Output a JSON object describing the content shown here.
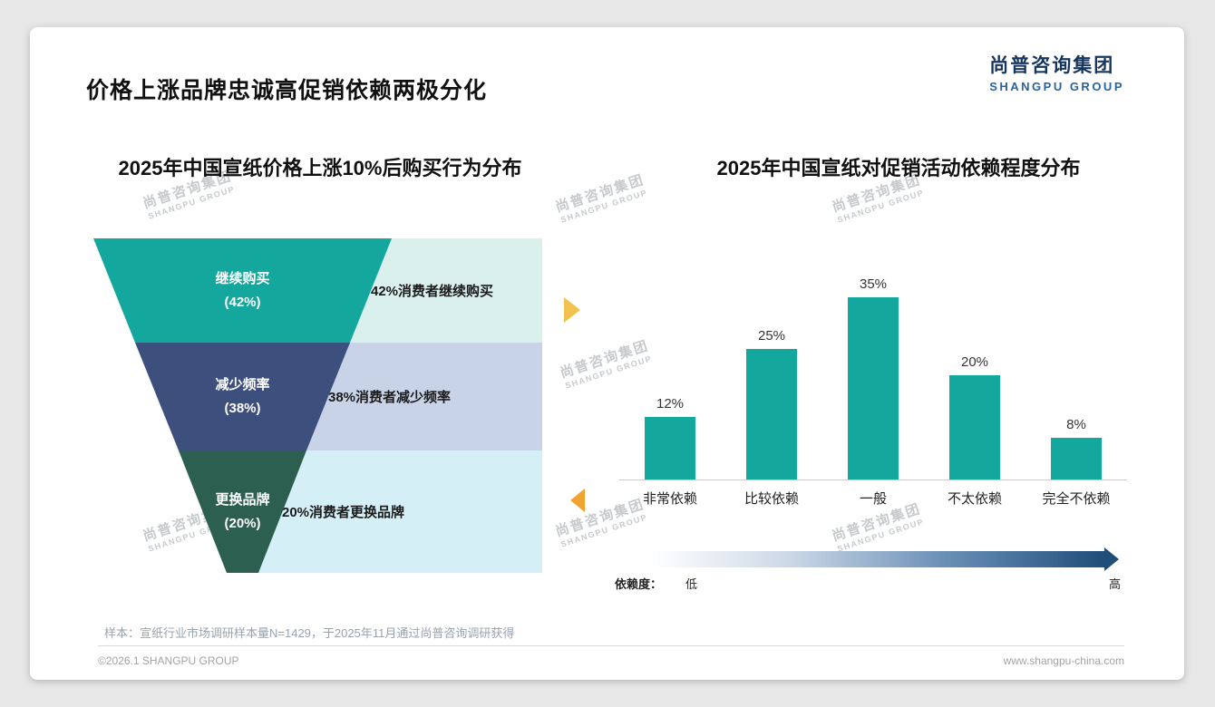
{
  "page": {
    "title": "价格上涨品牌忠诚高促销依赖两极分化",
    "logo": {
      "cn": "尚普咨询集团",
      "en": "SHANGPU GROUP"
    },
    "watermark": {
      "cn": "尚普咨询集团",
      "en": "SHANGPU GROUP"
    },
    "sample_note": "样本：宣纸行业市场调研样本量N=1429，于2025年11月通过尚普咨询调研获得",
    "footer": {
      "left": "©2026.1 SHANGPU GROUP",
      "right": "www.shangpu-china.com"
    },
    "colors": {
      "accent_teal": "#13a79e",
      "logo_navy": "#17365d",
      "arrow_yellow": "#f2c14e",
      "arrow_orange": "#f0a32f",
      "gradient_dark_blue": "#1f4e79"
    }
  },
  "chart_data": [
    {
      "type": "funnel",
      "title": "2025年中国宣纸价格上涨10%后购买行为分布",
      "categories": [
        "继续购买",
        "减少频率",
        "更换品牌"
      ],
      "values": [
        42,
        38,
        20
      ],
      "value_labels": [
        "(42%)",
        "(38%)",
        "(20%)"
      ],
      "annotations": [
        "42%消费者继续购买",
        "38%消费者减少频率",
        "20%消费者更换品牌"
      ],
      "segment_colors": [
        "#13a79e",
        "#3d4f7d",
        "#2d5f50"
      ],
      "panel_colors": [
        "#d9f0ec",
        "#c9d3e8",
        "#d4eff6"
      ]
    },
    {
      "type": "bar",
      "title": "2025年中国宣纸对促销活动依赖程度分布",
      "categories": [
        "非常依赖",
        "比较依赖",
        "一般",
        "不太依赖",
        "完全不依赖"
      ],
      "values": [
        12,
        25,
        35,
        20,
        8
      ],
      "value_labels": [
        "12%",
        "25%",
        "35%",
        "20%",
        "8%"
      ],
      "bar_color": "#13a79e",
      "ylim": [
        0,
        40
      ],
      "grid": false,
      "legend": "none",
      "axis_legend": {
        "label": "依赖度：",
        "low": "低",
        "high": "高"
      }
    }
  ]
}
